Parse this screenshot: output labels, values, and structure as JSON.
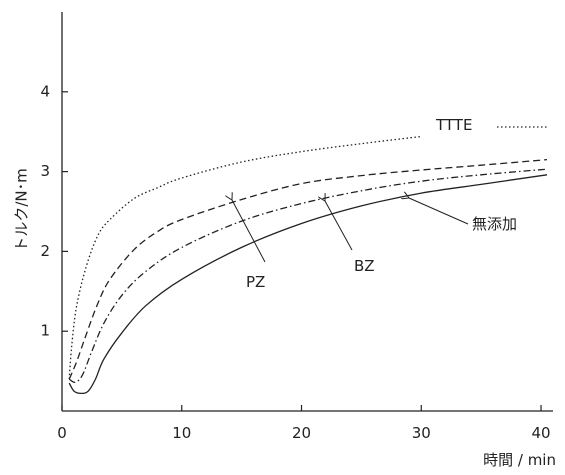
{
  "chart_data": {
    "type": "line",
    "xlabel": "時間 / min",
    "ylabel": "トルク/N･m",
    "xlim": [
      0,
      41
    ],
    "ylim": [
      0,
      5
    ],
    "xticks": [
      "0",
      "10",
      "20",
      "30",
      "40"
    ],
    "yticks": [
      "1",
      "2",
      "3",
      "4"
    ],
    "grid": false,
    "series": [
      {
        "name": "TTTE",
        "style": "dotted",
        "x": [
          0.6,
          0.8,
          1.2,
          2,
          3,
          4,
          6,
          8,
          10,
          15,
          20,
          25,
          30
        ],
        "y": [
          0.4,
          0.8,
          1.3,
          1.8,
          2.2,
          2.4,
          2.66,
          2.8,
          2.92,
          3.12,
          3.25,
          3.35,
          3.44
        ]
      },
      {
        "name": "PZ",
        "style": "dashed",
        "x": [
          0.6,
          0.9,
          1.3,
          2,
          3,
          4,
          6,
          8,
          10,
          15,
          20,
          25,
          30,
          35,
          40.5
        ],
        "y": [
          0.4,
          0.5,
          0.65,
          0.95,
          1.35,
          1.65,
          2.02,
          2.25,
          2.4,
          2.65,
          2.85,
          2.95,
          3.02,
          3.08,
          3.15
        ]
      },
      {
        "name": "BZ",
        "style": "dashdot",
        "x": [
          0.6,
          1.1,
          1.7,
          2.5,
          3.5,
          5,
          7,
          10,
          15,
          20,
          25,
          30,
          35,
          40.5
        ],
        "y": [
          0.4,
          0.36,
          0.45,
          0.75,
          1.1,
          1.45,
          1.75,
          2.05,
          2.38,
          2.6,
          2.76,
          2.88,
          2.96,
          3.03
        ]
      },
      {
        "name": "無添加",
        "style": "solid",
        "x": [
          0.6,
          1,
          1.6,
          2.2,
          2.8,
          3.5,
          5,
          7,
          10,
          15,
          20,
          25,
          30,
          35,
          40.5
        ],
        "y": [
          0.35,
          0.25,
          0.22,
          0.25,
          0.4,
          0.65,
          0.98,
          1.32,
          1.65,
          2.05,
          2.35,
          2.57,
          2.73,
          2.84,
          2.96
        ]
      }
    ],
    "annotations": [
      {
        "text": "TTTE"
      },
      {
        "text": "PZ"
      },
      {
        "text": "BZ"
      },
      {
        "text": "無添加"
      }
    ]
  }
}
